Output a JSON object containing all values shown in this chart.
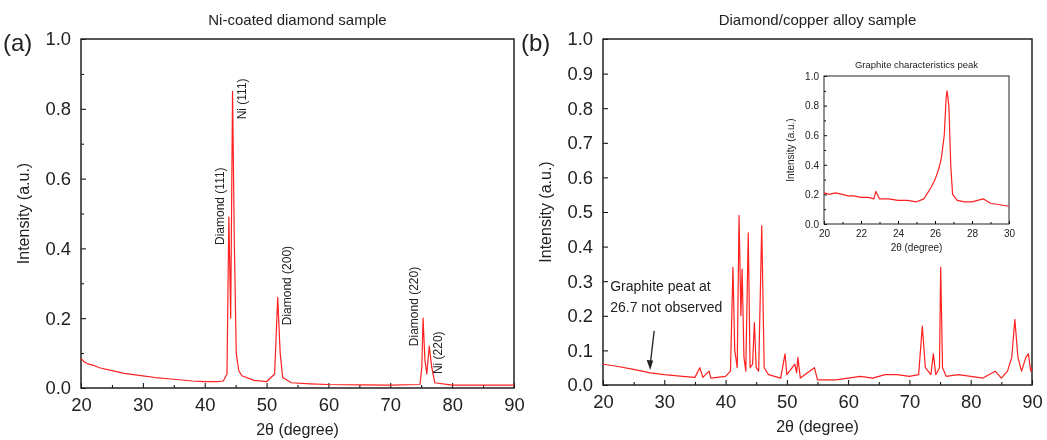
{
  "chart_data": [
    {
      "type": "line",
      "title": "Ni-coated diamond sample",
      "xlabel": "2θ (degree)",
      "ylabel": "Intensity (a.u.)",
      "xlim": [
        20,
        90
      ],
      "ylim": [
        0,
        1
      ],
      "xticks": [
        20,
        {
          "value": 25,
          "label": null
        },
        30,
        {
          "value": 35,
          "label": null
        },
        40,
        {
          "value": 45,
          "label": null
        },
        50,
        {
          "value": 55,
          "label": null
        },
        60,
        {
          "value": 65,
          "label": null
        },
        70,
        {
          "value": 75,
          "label": null
        },
        80,
        {
          "value": 85,
          "label": null
        },
        90
      ],
      "yticks": [
        {
          "value": 0,
          "label": "0.0"
        },
        {
          "value": 0.1,
          "label": null
        },
        {
          "value": 0.2,
          "label": "0.2"
        },
        {
          "value": 0.3,
          "label": null
        },
        {
          "value": 0.4,
          "label": "0.4"
        },
        {
          "value": 0.5,
          "label": null
        },
        {
          "value": 0.6,
          "label": "0.6"
        },
        {
          "value": 0.7,
          "label": null
        },
        {
          "value": 0.8,
          "label": "0.8"
        },
        {
          "value": 0.9,
          "label": null
        },
        {
          "value": 1,
          "label": "1.0"
        }
      ],
      "x": [
        20,
        20.5,
        21,
        22,
        23,
        25,
        27,
        30,
        32,
        35,
        38,
        40,
        42,
        43,
        43.6,
        43.9,
        44.05,
        44.2,
        44.5,
        44.8,
        45.1,
        45.5,
        46,
        48,
        50,
        51.3,
        51.8,
        52.2,
        52.6,
        54,
        57,
        60,
        65,
        70,
        74.8,
        75.1,
        75.3,
        75.6,
        75.9,
        76.3,
        76.7,
        77.2,
        80,
        85,
        90
      ],
      "series": [
        {
          "color": "#ff2020",
          "values": [
            0.085,
            0.075,
            0.07,
            0.065,
            0.058,
            0.05,
            0.042,
            0.035,
            0.03,
            0.025,
            0.02,
            0.018,
            0.018,
            0.02,
            0.04,
            0.49,
            0.35,
            0.2,
            0.85,
            0.4,
            0.1,
            0.05,
            0.035,
            0.022,
            0.018,
            0.04,
            0.26,
            0.1,
            0.03,
            0.015,
            0.012,
            0.01,
            0.009,
            0.008,
            0.01,
            0.06,
            0.2,
            0.08,
            0.04,
            0.12,
            0.06,
            0.015,
            0.008,
            0.008,
            0.008
          ]
        }
      ],
      "annotations": [
        "(a)",
        {
          "text": "Diamond (111)",
          "x": 43.9,
          "y": 0.49
        },
        {
          "text": "Ni (111)",
          "x": 44.5,
          "y": 0.85
        },
        {
          "text": "Diamond (200)",
          "x": 51.8,
          "y": 0.26
        },
        {
          "text": "Diamond (220)",
          "x": 75.3,
          "y": 0.2
        },
        {
          "text": "Ni (220)",
          "x": 76.3,
          "y": 0.12
        }
      ]
    },
    {
      "type": "line",
      "title": "Diamond/copper alloy sample",
      "xlabel": "2θ (degree)",
      "ylabel": "Intensity (a.u.)",
      "xlim": [
        20,
        90
      ],
      "ylim": [
        0,
        1
      ],
      "xticks": [
        20,
        {
          "value": 25,
          "label": null
        },
        30,
        {
          "value": 35,
          "label": null
        },
        40,
        {
          "value": 45,
          "label": null
        },
        50,
        {
          "value": 55,
          "label": null
        },
        60,
        {
          "value": 65,
          "label": null
        },
        70,
        {
          "value": 75,
          "label": null
        },
        80,
        {
          "value": 85,
          "label": null
        },
        90
      ],
      "yticks": [
        {
          "value": 0,
          "label": "0.0"
        },
        {
          "value": 0.1,
          "label": "0.1"
        },
        {
          "value": 0.2,
          "label": "0.2"
        },
        {
          "value": 0.3,
          "label": "0.3"
        },
        {
          "value": 0.4,
          "label": "0.4"
        },
        {
          "value": 0.5,
          "label": "0.5"
        },
        {
          "value": 0.6,
          "label": "0.6"
        },
        {
          "value": 0.7,
          "label": "0.7"
        },
        {
          "value": 0.8,
          "label": "0.8"
        },
        {
          "value": 0.9,
          "label": "0.9"
        },
        {
          "value": 1,
          "label": "1.0"
        }
      ],
      "x": [
        20,
        22,
        25,
        27.7,
        30,
        33,
        35,
        35.8,
        36.3,
        37.3,
        37.6,
        40,
        40.8,
        41.2,
        41.5,
        41.9,
        42.2,
        42.5,
        42.7,
        43,
        43.3,
        43.7,
        44,
        44.4,
        44.7,
        45,
        45.4,
        45.9,
        46.3,
        47,
        49,
        49.7,
        50,
        51.3,
        51.6,
        51.8,
        52.2,
        54.5,
        55,
        58,
        60,
        62,
        64,
        66,
        68,
        70,
        71.5,
        72.1,
        72.6,
        73.5,
        73.9,
        74.3,
        74.9,
        75.1,
        75.4,
        76,
        78,
        80,
        82,
        84,
        85,
        86,
        86.7,
        87.2,
        87.7,
        88.3,
        89,
        89.4,
        89.8,
        90
      ],
      "series": [
        {
          "color": "#ff2020",
          "values": [
            0.06,
            0.055,
            0.045,
            0.035,
            0.03,
            0.025,
            0.022,
            0.05,
            0.022,
            0.04,
            0.02,
            0.025,
            0.04,
            0.34,
            0.1,
            0.05,
            0.49,
            0.2,
            0.335,
            0.08,
            0.04,
            0.44,
            0.05,
            0.06,
            0.18,
            0.05,
            0.04,
            0.46,
            0.05,
            0.03,
            0.02,
            0.09,
            0.03,
            0.06,
            0.035,
            0.08,
            0.02,
            0.05,
            0.015,
            0.015,
            0.02,
            0.025,
            0.02,
            0.03,
            0.03,
            0.025,
            0.03,
            0.17,
            0.05,
            0.03,
            0.09,
            0.03,
            0.05,
            0.34,
            0.05,
            0.025,
            0.03,
            0.025,
            0.02,
            0.04,
            0.02,
            0.04,
            0.08,
            0.19,
            0.08,
            0.04,
            0.08,
            0.09,
            0.04,
            0.05
          ]
        }
      ],
      "annotations": [
        "(b)",
        {
          "text": "Graphite peat at\n26.7 not observed",
          "x": 27.7,
          "y": 0.035
        }
      ]
    },
    {
      "type": "line",
      "title": "Graphite characteristics peak",
      "xlabel": "2θ (degree)",
      "ylabel": "Intensity (a.u.)",
      "xlim": [
        20,
        30
      ],
      "ylim": [
        0,
        1
      ],
      "xticks": [
        20,
        {
          "value": 21,
          "label": null
        },
        22,
        {
          "value": 23,
          "label": null
        },
        24,
        {
          "value": 25,
          "label": null
        },
        26,
        {
          "value": 27,
          "label": null
        },
        28,
        {
          "value": 29,
          "label": null
        },
        30
      ],
      "yticks": [
        {
          "value": 0,
          "label": "0.0"
        },
        {
          "value": 0.1,
          "label": null
        },
        {
          "value": 0.2,
          "label": "0.2"
        },
        {
          "value": 0.3,
          "label": null
        },
        {
          "value": 0.4,
          "label": "0.4"
        },
        {
          "value": 0.5,
          "label": null
        },
        {
          "value": 0.6,
          "label": "0.6"
        },
        {
          "value": 0.7,
          "label": null
        },
        {
          "value": 0.8,
          "label": "0.8"
        },
        {
          "value": 0.9,
          "label": null
        },
        {
          "value": 1,
          "label": "1.0"
        }
      ],
      "x": [
        20,
        20.3,
        20.6,
        21,
        21.3,
        21.6,
        22,
        22.4,
        22.7,
        22.8,
        23,
        23.5,
        24,
        24.5,
        25,
        25.4,
        25.8,
        26,
        26.2,
        26.35,
        26.5,
        26.6,
        26.65,
        26.75,
        26.85,
        26.95,
        27.2,
        27.6,
        28,
        28.6,
        29,
        29.5,
        30
      ],
      "series": [
        {
          "color": "#ff2020",
          "values": [
            0.21,
            0.2,
            0.21,
            0.2,
            0.19,
            0.19,
            0.18,
            0.18,
            0.17,
            0.22,
            0.17,
            0.17,
            0.16,
            0.16,
            0.15,
            0.17,
            0.25,
            0.3,
            0.37,
            0.45,
            0.6,
            0.85,
            0.9,
            0.8,
            0.4,
            0.2,
            0.16,
            0.15,
            0.15,
            0.17,
            0.14,
            0.13,
            0.12
          ]
        }
      ]
    }
  ]
}
